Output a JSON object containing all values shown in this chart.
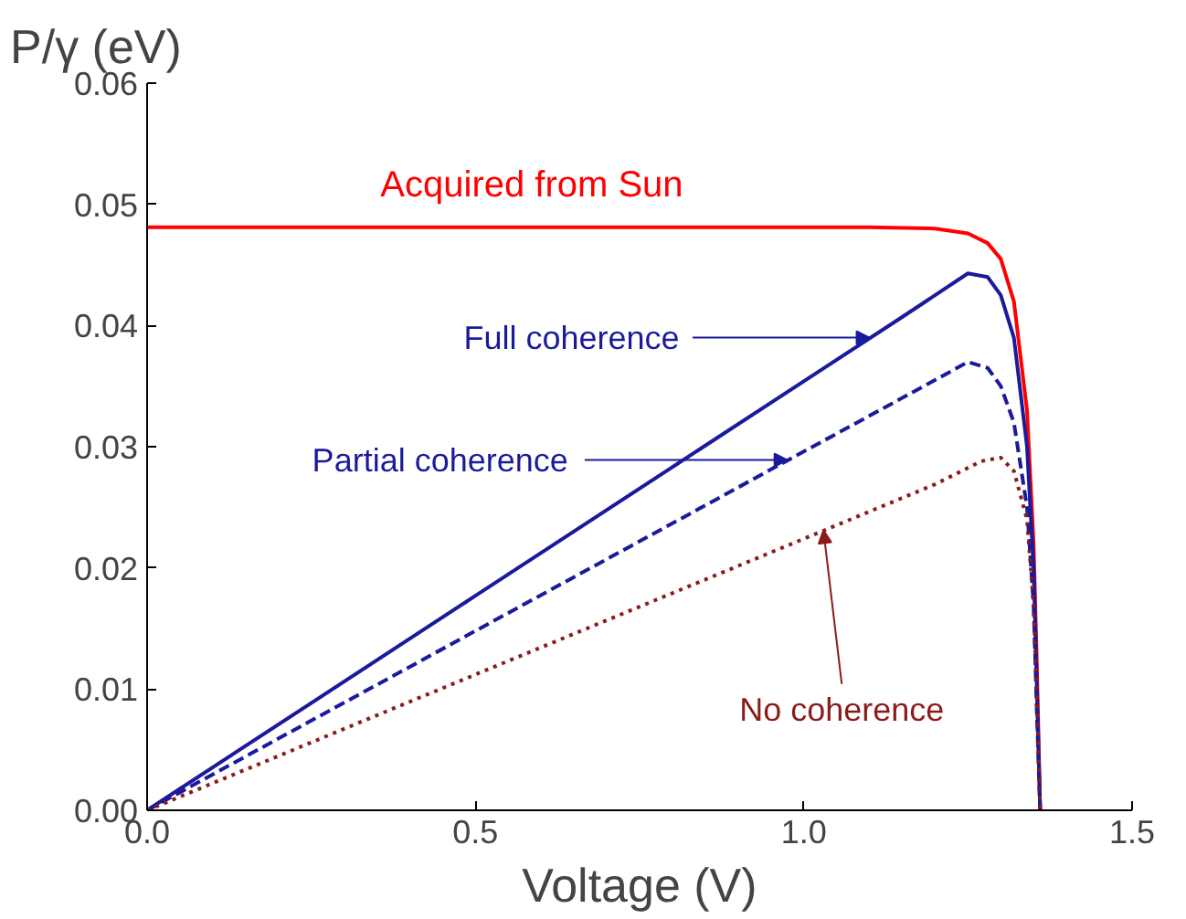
{
  "chart_data": {
    "type": "line",
    "ylabel": "P/γ (eV)",
    "xlabel": "Voltage (V)",
    "xlim": [
      0,
      1.5
    ],
    "ylim": [
      0,
      0.06
    ],
    "xticks": [
      {
        "value": 0,
        "label": "0.0"
      },
      0.5,
      {
        "value": 1,
        "label": "1.0"
      },
      1.5
    ],
    "yticks": [
      {
        "value": 0,
        "label": "0.00"
      },
      0.01,
      0.02,
      0.03,
      0.04,
      0.05,
      0.06
    ],
    "grid": false,
    "marker": "none",
    "series": [
      {
        "name": "Acquired from Sun",
        "color": "#ff0000",
        "line_style": "solid",
        "x": [
          0,
          0.5,
          1.0,
          1.1,
          1.2,
          1.25,
          1.28,
          1.3,
          1.32,
          1.34,
          1.35,
          1.355,
          1.36
        ],
        "values": [
          0.0481,
          0.0481,
          0.0481,
          0.0481,
          0.048,
          0.0476,
          0.0468,
          0.0455,
          0.042,
          0.033,
          0.022,
          0.012,
          0
        ]
      },
      {
        "color": "#1a1a9c",
        "line_style": "solid",
        "x": [
          0,
          0.5,
          1.0,
          1.15,
          1.2,
          1.25,
          1.28,
          1.3,
          1.32,
          1.34,
          1.35,
          1.355,
          1.36
        ],
        "values": [
          0,
          0.0177,
          0.0354,
          0.0407,
          0.0425,
          0.0443,
          0.044,
          0.0425,
          0.039,
          0.03,
          0.02,
          0.01,
          0
        ]
      },
      {
        "color": "#1a1a9c",
        "line_style": "dashed",
        "x": [
          0,
          0.5,
          1.0,
          1.2,
          1.25,
          1.28,
          1.3,
          1.32,
          1.34,
          1.35,
          1.355,
          1.36
        ],
        "values": [
          0,
          0.0148,
          0.0296,
          0.0355,
          0.037,
          0.0365,
          0.035,
          0.032,
          0.025,
          0.017,
          0.008,
          0
        ]
      },
      {
        "color": "#8b1a1a",
        "line_style": "dotted",
        "x": [
          0,
          0.5,
          1.0,
          1.2,
          1.27,
          1.3,
          1.32,
          1.34,
          1.35,
          1.355,
          1.36
        ],
        "values": [
          0,
          0.0112,
          0.0224,
          0.0269,
          0.0288,
          0.0291,
          0.028,
          0.024,
          0.017,
          0.009,
          0
        ]
      }
    ],
    "annotations": [
      {
        "text": "Full coherence",
        "x": 1.1,
        "y": 0.039
      },
      {
        "text": "Partial coherence",
        "x": 0.975,
        "y": 0.0289
      },
      {
        "text": "No coherence",
        "x": 1.03,
        "y": 0.0231
      }
    ]
  }
}
